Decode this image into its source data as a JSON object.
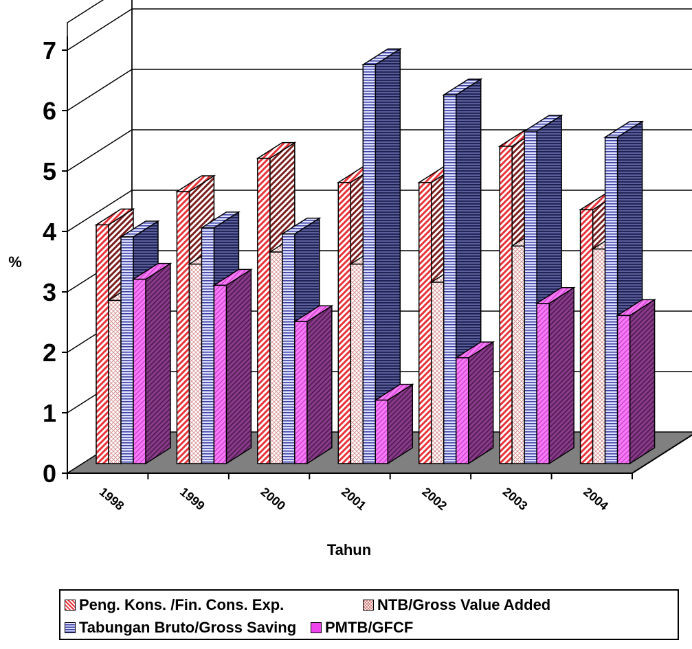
{
  "chart_data": {
    "type": "bar",
    "categories": [
      "1998",
      "1999",
      "2000",
      "2001",
      "2002",
      "2003",
      "2004"
    ],
    "series": [
      {
        "name": "Peng. Kons. /Fin. Cons. Exp.",
        "values": [
          3.95,
          4.5,
          5.05,
          4.65,
          4.65,
          5.25,
          4.2
        ]
      },
      {
        "name": "NTB/Gross Value Added",
        "values": [
          2.7,
          3.3,
          3.5,
          3.3,
          3.0,
          3.6,
          3.55
        ]
      },
      {
        "name": "Tabungan Bruto/Gross Saving",
        "values": [
          3.75,
          3.9,
          3.8,
          6.6,
          6.1,
          5.5,
          5.4
        ]
      },
      {
        "name": "PMTB/GFCF",
        "values": [
          3.05,
          2.95,
          2.35,
          1.05,
          1.75,
          2.65,
          2.45
        ]
      }
    ],
    "colors": [
      "#e8333a",
      "#f4d8d8",
      "#3b3fa0",
      "#ee44ee"
    ],
    "ylabel": "%",
    "xlabel": "Tahun",
    "ylim": [
      0,
      7
    ],
    "yticks": [
      "0",
      "1",
      "2",
      "3",
      "4",
      "5",
      "6",
      "7"
    ],
    "grid": true,
    "legend_position": "bottom"
  }
}
